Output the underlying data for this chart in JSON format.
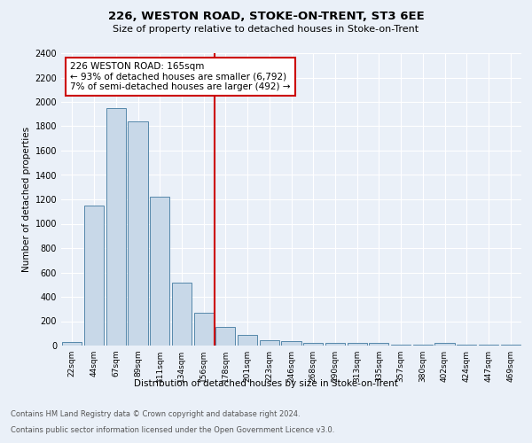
{
  "title1": "226, WESTON ROAD, STOKE-ON-TRENT, ST3 6EE",
  "title2": "Size of property relative to detached houses in Stoke-on-Trent",
  "xlabel": "Distribution of detached houses by size in Stoke-on-Trent",
  "ylabel": "Number of detached properties",
  "categories": [
    "22sqm",
    "44sqm",
    "67sqm",
    "89sqm",
    "111sqm",
    "134sqm",
    "156sqm",
    "178sqm",
    "201sqm",
    "223sqm",
    "246sqm",
    "268sqm",
    "290sqm",
    "313sqm",
    "335sqm",
    "357sqm",
    "380sqm",
    "402sqm",
    "424sqm",
    "447sqm",
    "469sqm"
  ],
  "values": [
    30,
    1150,
    1950,
    1840,
    1220,
    515,
    270,
    155,
    85,
    45,
    40,
    20,
    25,
    20,
    20,
    5,
    5,
    20,
    5,
    5,
    5
  ],
  "bar_color": "#c8d8e8",
  "bar_edge_color": "#5588aa",
  "vline_x_index": 6.5,
  "vline_color": "#cc0000",
  "annotation_text": "226 WESTON ROAD: 165sqm\n← 93% of detached houses are smaller (6,792)\n7% of semi-detached houses are larger (492) →",
  "annotation_box_color": "#ffffff",
  "annotation_box_edge": "#cc0000",
  "ylim": [
    0,
    2400
  ],
  "yticks": [
    0,
    200,
    400,
    600,
    800,
    1000,
    1200,
    1400,
    1600,
    1800,
    2000,
    2200,
    2400
  ],
  "footnote1": "Contains HM Land Registry data © Crown copyright and database right 2024.",
  "footnote2": "Contains public sector information licensed under the Open Government Licence v3.0.",
  "bg_color": "#eaf0f8",
  "plot_bg_color": "#eaf0f8"
}
